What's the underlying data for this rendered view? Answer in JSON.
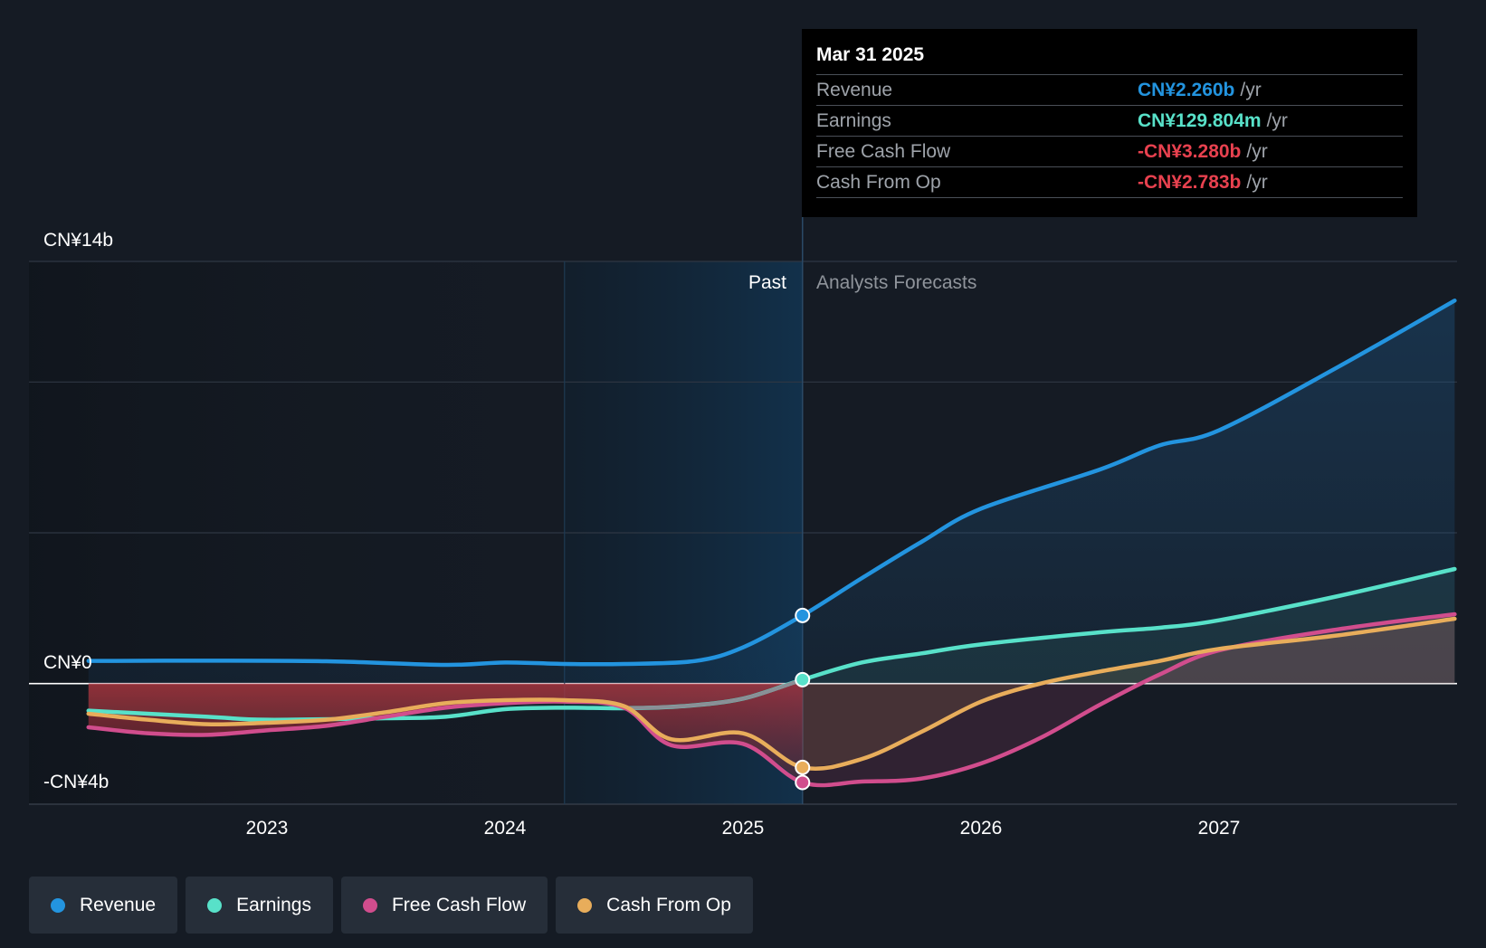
{
  "chart_data": {
    "type": "line",
    "currency": "CN¥",
    "y_axis": {
      "top_label": "CN¥14b",
      "zero_label": "CN¥0",
      "bottom_label": "-CN¥4b",
      "ylim": [
        -4,
        14
      ]
    },
    "x_ticks": [
      {
        "label": "2023",
        "year": 2023.0
      },
      {
        "label": "2024",
        "year": 2024.0
      },
      {
        "label": "2025",
        "year": 2025.0
      },
      {
        "label": "2026",
        "year": 2026.0
      },
      {
        "label": "2027",
        "year": 2027.0
      }
    ],
    "x_range": [
      2022.0,
      2028.0
    ],
    "highlight_start": 2024.25,
    "divider": 2025.25,
    "past_label": "Past",
    "forecast_label": "Analysts Forecasts",
    "series": [
      {
        "name": "Revenue",
        "key": "revenue",
        "color": "#2394df",
        "points": [
          [
            2022.25,
            0.75
          ],
          [
            2022.75,
            0.76
          ],
          [
            2023.25,
            0.74
          ],
          [
            2023.75,
            0.62
          ],
          [
            2024.0,
            0.7
          ],
          [
            2024.25,
            0.65
          ],
          [
            2024.5,
            0.65
          ],
          [
            2024.8,
            0.75
          ],
          [
            2025.0,
            1.2
          ],
          [
            2025.25,
            2.26
          ],
          [
            2025.5,
            3.5
          ],
          [
            2025.75,
            4.7
          ],
          [
            2026.0,
            5.8
          ],
          [
            2026.5,
            7.1
          ],
          [
            2026.75,
            7.9
          ],
          [
            2027.0,
            8.4
          ],
          [
            2027.5,
            10.5
          ],
          [
            2027.99,
            12.7
          ]
        ]
      },
      {
        "name": "Earnings",
        "key": "earnings",
        "color": "#58e1c9",
        "points": [
          [
            2022.25,
            -0.9
          ],
          [
            2022.75,
            -1.1
          ],
          [
            2023.0,
            -1.2
          ],
          [
            2023.5,
            -1.15
          ],
          [
            2023.75,
            -1.1
          ],
          [
            2024.0,
            -0.85
          ],
          [
            2024.25,
            -0.8
          ],
          [
            2024.5,
            -0.82
          ],
          [
            2024.75,
            -0.75
          ],
          [
            2025.0,
            -0.5
          ],
          [
            2025.25,
            0.13
          ],
          [
            2025.5,
            0.7
          ],
          [
            2025.75,
            1.0
          ],
          [
            2026.0,
            1.3
          ],
          [
            2026.5,
            1.7
          ],
          [
            2026.75,
            1.85
          ],
          [
            2027.0,
            2.1
          ],
          [
            2027.5,
            2.9
          ],
          [
            2027.99,
            3.8
          ]
        ]
      },
      {
        "name": "Free Cash Flow",
        "key": "fcf",
        "color": "#d14d8d",
        "points": [
          [
            2022.25,
            -1.45
          ],
          [
            2022.5,
            -1.65
          ],
          [
            2022.75,
            -1.7
          ],
          [
            2023.0,
            -1.55
          ],
          [
            2023.25,
            -1.4
          ],
          [
            2023.5,
            -1.1
          ],
          [
            2023.75,
            -0.8
          ],
          [
            2024.0,
            -0.65
          ],
          [
            2024.25,
            -0.6
          ],
          [
            2024.5,
            -0.8
          ],
          [
            2024.7,
            -2.05
          ],
          [
            2025.0,
            -2.0
          ],
          [
            2025.25,
            -3.28
          ],
          [
            2025.5,
            -3.25
          ],
          [
            2025.75,
            -3.15
          ],
          [
            2026.0,
            -2.65
          ],
          [
            2026.25,
            -1.8
          ],
          [
            2026.5,
            -0.7
          ],
          [
            2026.75,
            0.3
          ],
          [
            2027.0,
            1.1
          ],
          [
            2027.5,
            1.8
          ],
          [
            2027.99,
            2.3
          ]
        ]
      },
      {
        "name": "Cash From Op",
        "key": "cfo",
        "color": "#e8ad5b",
        "points": [
          [
            2022.25,
            -1.0
          ],
          [
            2022.5,
            -1.2
          ],
          [
            2022.75,
            -1.35
          ],
          [
            2023.0,
            -1.3
          ],
          [
            2023.25,
            -1.2
          ],
          [
            2023.5,
            -0.95
          ],
          [
            2023.75,
            -0.65
          ],
          [
            2024.0,
            -0.55
          ],
          [
            2024.25,
            -0.55
          ],
          [
            2024.5,
            -0.75
          ],
          [
            2024.7,
            -1.85
          ],
          [
            2025.0,
            -1.65
          ],
          [
            2025.25,
            -2.78
          ],
          [
            2025.5,
            -2.5
          ],
          [
            2025.75,
            -1.6
          ],
          [
            2026.0,
            -0.6
          ],
          [
            2026.25,
            0.0
          ],
          [
            2026.5,
            0.4
          ],
          [
            2026.75,
            0.75
          ],
          [
            2027.0,
            1.15
          ],
          [
            2027.5,
            1.6
          ],
          [
            2027.99,
            2.15
          ]
        ]
      },
      {
        "name": "Earnings (past, muted)",
        "key": "earnings_muted",
        "color": "#8a8f96",
        "points": [
          [
            2024.5,
            -0.82
          ],
          [
            2024.75,
            -0.75
          ],
          [
            2025.0,
            -0.5
          ],
          [
            2025.25,
            0.13
          ]
        ]
      }
    ],
    "markers": [
      {
        "series": "revenue",
        "year": 2025.25,
        "value": 2.26
      },
      {
        "series": "earnings",
        "year": 2025.25,
        "value": 0.13
      },
      {
        "series": "cfo",
        "year": 2025.25,
        "value": -2.78
      },
      {
        "series": "fcf",
        "year": 2025.25,
        "value": -3.28
      }
    ]
  },
  "tooltip": {
    "date": "Mar 31 2025",
    "rows": [
      {
        "label": "Revenue",
        "value": "CN¥2.260b",
        "unit": "/yr",
        "color": "#2394df"
      },
      {
        "label": "Earnings",
        "value": "CN¥129.804m",
        "unit": "/yr",
        "color": "#58e1c9"
      },
      {
        "label": "Free Cash Flow",
        "value": "-CN¥3.280b",
        "unit": "/yr",
        "color": "#e8414f"
      },
      {
        "label": "Cash From Op",
        "value": "-CN¥2.783b",
        "unit": "/yr",
        "color": "#e8414f"
      }
    ]
  },
  "legend": [
    {
      "label": "Revenue",
      "color": "#2394df"
    },
    {
      "label": "Earnings",
      "color": "#58e1c9"
    },
    {
      "label": "Free Cash Flow",
      "color": "#d14d8d"
    },
    {
      "label": "Cash From Op",
      "color": "#e8ad5b"
    }
  ]
}
